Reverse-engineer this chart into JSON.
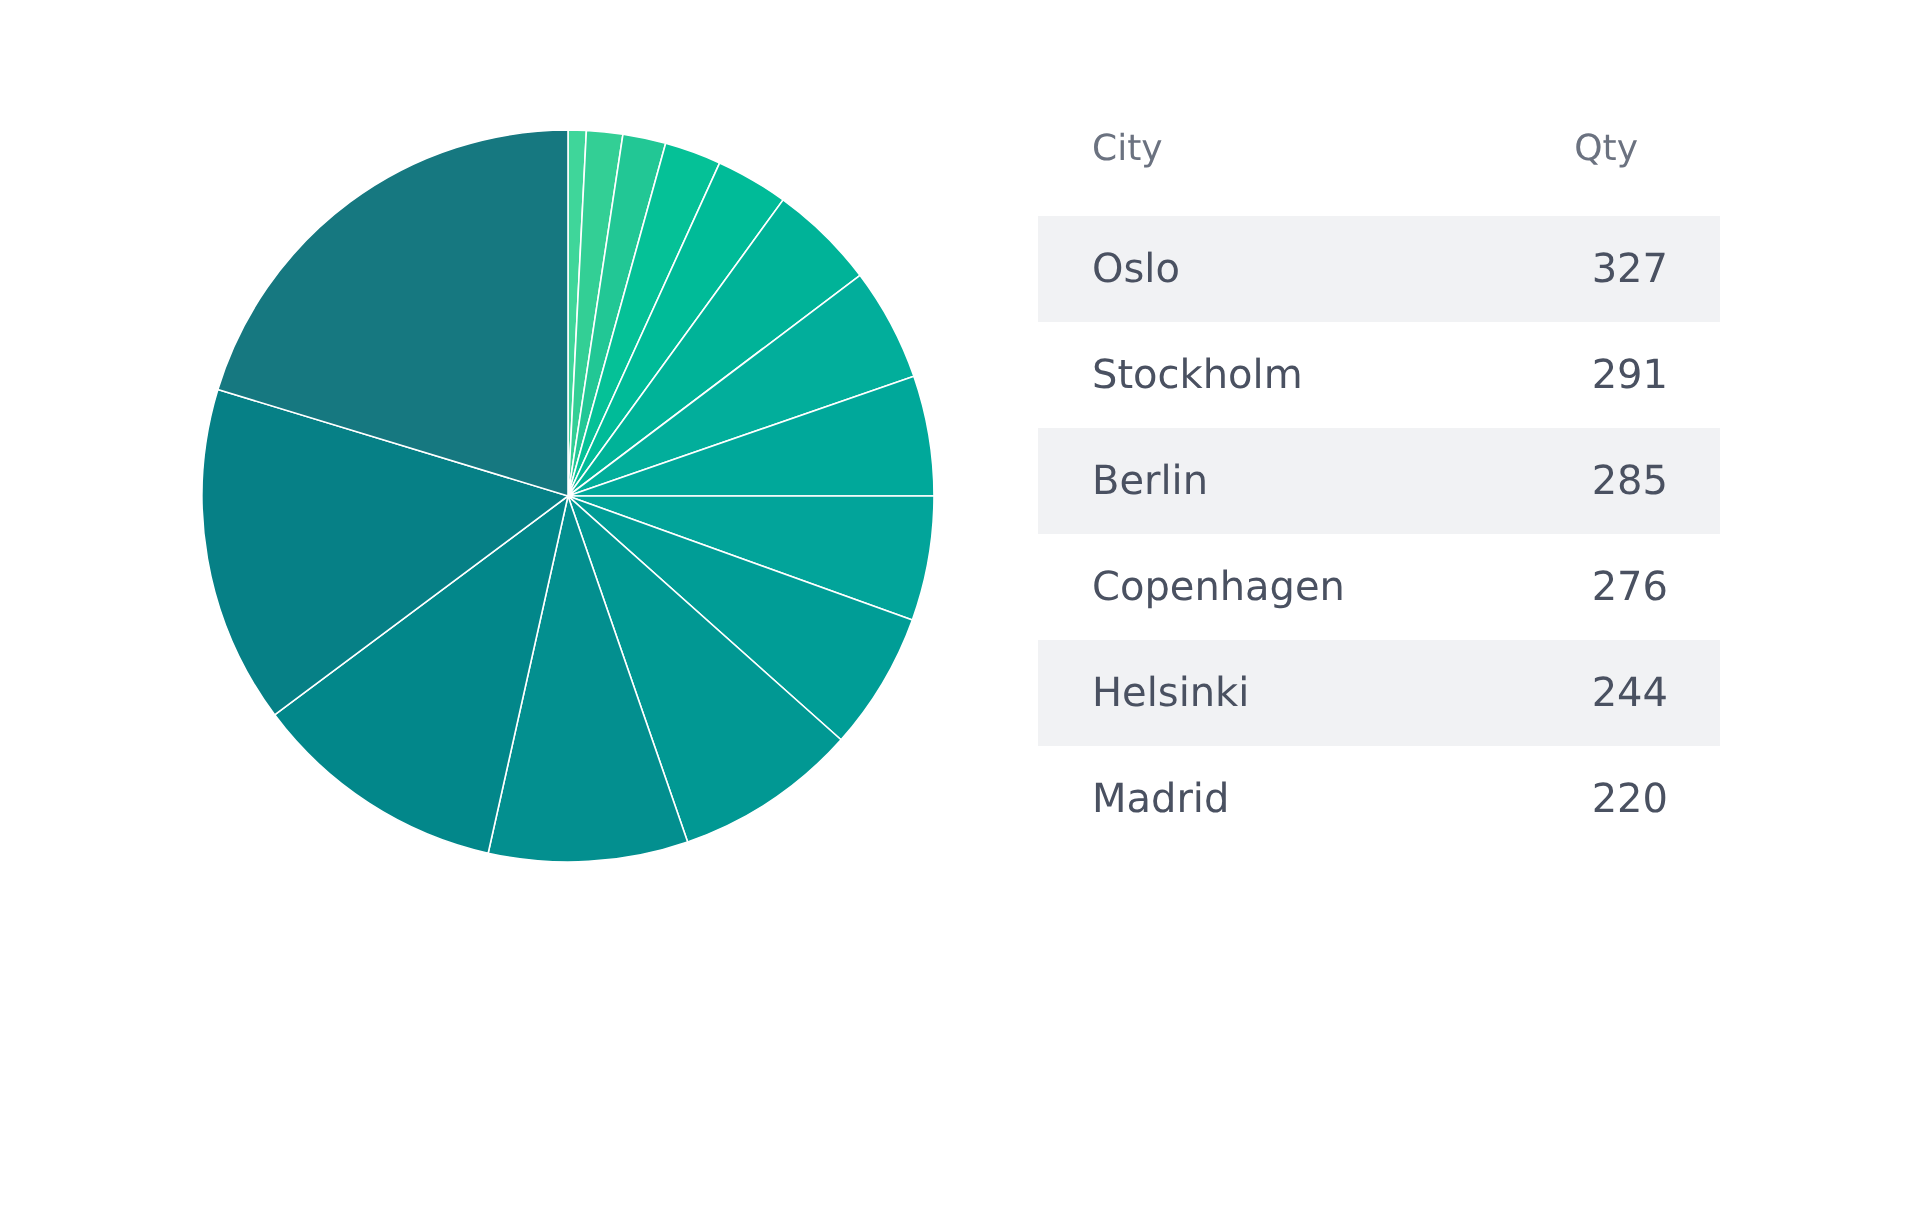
{
  "chart_data": [
    {
      "type": "pie",
      "categories": [
        null,
        null,
        null,
        null,
        null,
        null,
        null,
        null,
        null,
        null,
        null,
        null,
        null,
        null,
        null
      ],
      "values": [
        0.8,
        1.6,
        1.9,
        2.5,
        3.2,
        4.7,
        5.0,
        5.3,
        5.5,
        6.1,
        8.1,
        8.8,
        11.3,
        14.9,
        20.3
      ],
      "colors": [
        "#3fd69a",
        "#33cf95",
        "#22c795",
        "#05c197",
        "#00bb98",
        "#00b398",
        "#02ae9b",
        "#00a89a",
        "#02a49a",
        "#009d96",
        "#019893",
        "#038f8f",
        "#02878a",
        "#068086",
        "#167880"
      ]
    },
    {
      "type": "other",
      "xlabel": "City",
      "ylabel": "Qty",
      "categories": [
        "Oslo",
        "Stockholm",
        "Berlin",
        "Copenhagen",
        "Helsinki",
        "Madrid"
      ],
      "values": [
        327,
        291,
        285,
        276,
        244,
        220
      ],
      "data_labels": true
    }
  ]
}
